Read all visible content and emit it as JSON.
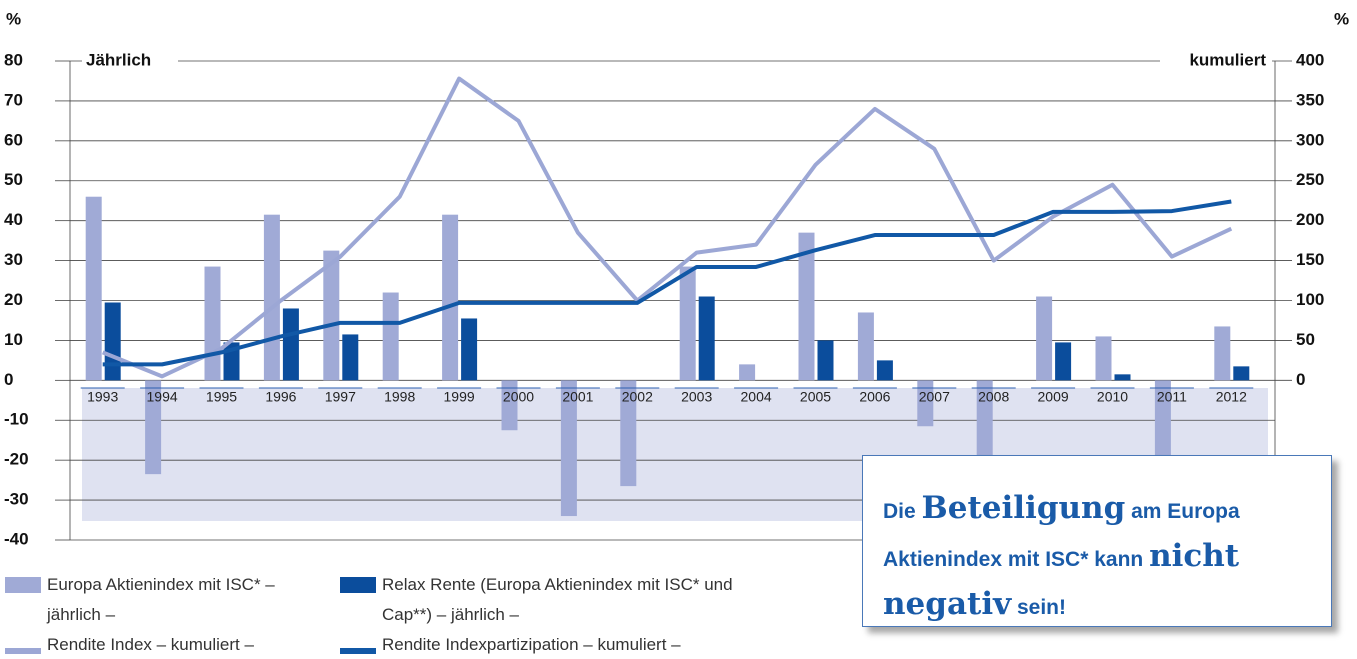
{
  "chart_data": {
    "type": "combo",
    "y_label": "%",
    "y2_label": "%",
    "left_title": "Jährlich",
    "right_title": "kumuliert",
    "categories": [
      "1993",
      "1994",
      "1995",
      "1996",
      "1997",
      "1998",
      "1999",
      "2000",
      "2001",
      "2002",
      "2003",
      "2004",
      "2005",
      "2006",
      "2007",
      "2008",
      "2009",
      "2010",
      "2011",
      "2012"
    ],
    "series": [
      {
        "name": "Europa Aktienindex mit ISC* – jährlich –",
        "type": "bar",
        "color": "#a0aad6",
        "values": [
          46,
          -23.5,
          28.5,
          41.5,
          32.5,
          22,
          41.5,
          -12.5,
          -34,
          -26.5,
          28.5,
          4,
          37,
          17,
          -11.5,
          -33,
          21,
          11,
          -30,
          13.5
        ]
      },
      {
        "name": "Relax Rente (Europa Aktienindex mit ISC* und Cap**) – jährlich –",
        "type": "bar",
        "color": "#0b4d9c",
        "values": [
          19.5,
          0,
          9.5,
          18,
          11.5,
          0,
          15.5,
          0,
          0,
          0,
          21,
          0,
          10,
          5,
          0,
          0,
          9.5,
          1.5,
          0,
          3.5
        ]
      },
      {
        "name": "Rendite Index – kumuliert –",
        "type": "line",
        "axis": "y2",
        "color": "#9ca7d5",
        "values": [
          35,
          5,
          40,
          100,
          155,
          230,
          378,
          325,
          185,
          100,
          160,
          170,
          270,
          340,
          290,
          150,
          205,
          245,
          155,
          190
        ]
      },
      {
        "name": "Rendite Indexpartizipation – kumuliert –",
        "type": "line",
        "axis": "y2",
        "color": "#1158a6",
        "values": [
          20,
          20,
          35,
          55,
          72,
          72,
          97,
          97,
          97,
          97,
          142,
          142,
          163,
          182,
          182,
          182,
          211,
          211,
          212,
          224
        ]
      }
    ],
    "ylim": [
      -40,
      80
    ],
    "yticks": [
      -40,
      -30,
      -20,
      -10,
      0,
      10,
      20,
      30,
      40,
      50,
      60,
      70,
      80
    ],
    "y2lim": [
      -200,
      400
    ],
    "y2ticks": [
      0,
      50,
      100,
      150,
      200,
      250,
      300,
      350,
      400
    ],
    "grid": true,
    "annotation": [
      "Die",
      "Beteiligung",
      "am Europa Aktienindex mit ISC* kann",
      "nicht negativ",
      "sein!"
    ]
  }
}
